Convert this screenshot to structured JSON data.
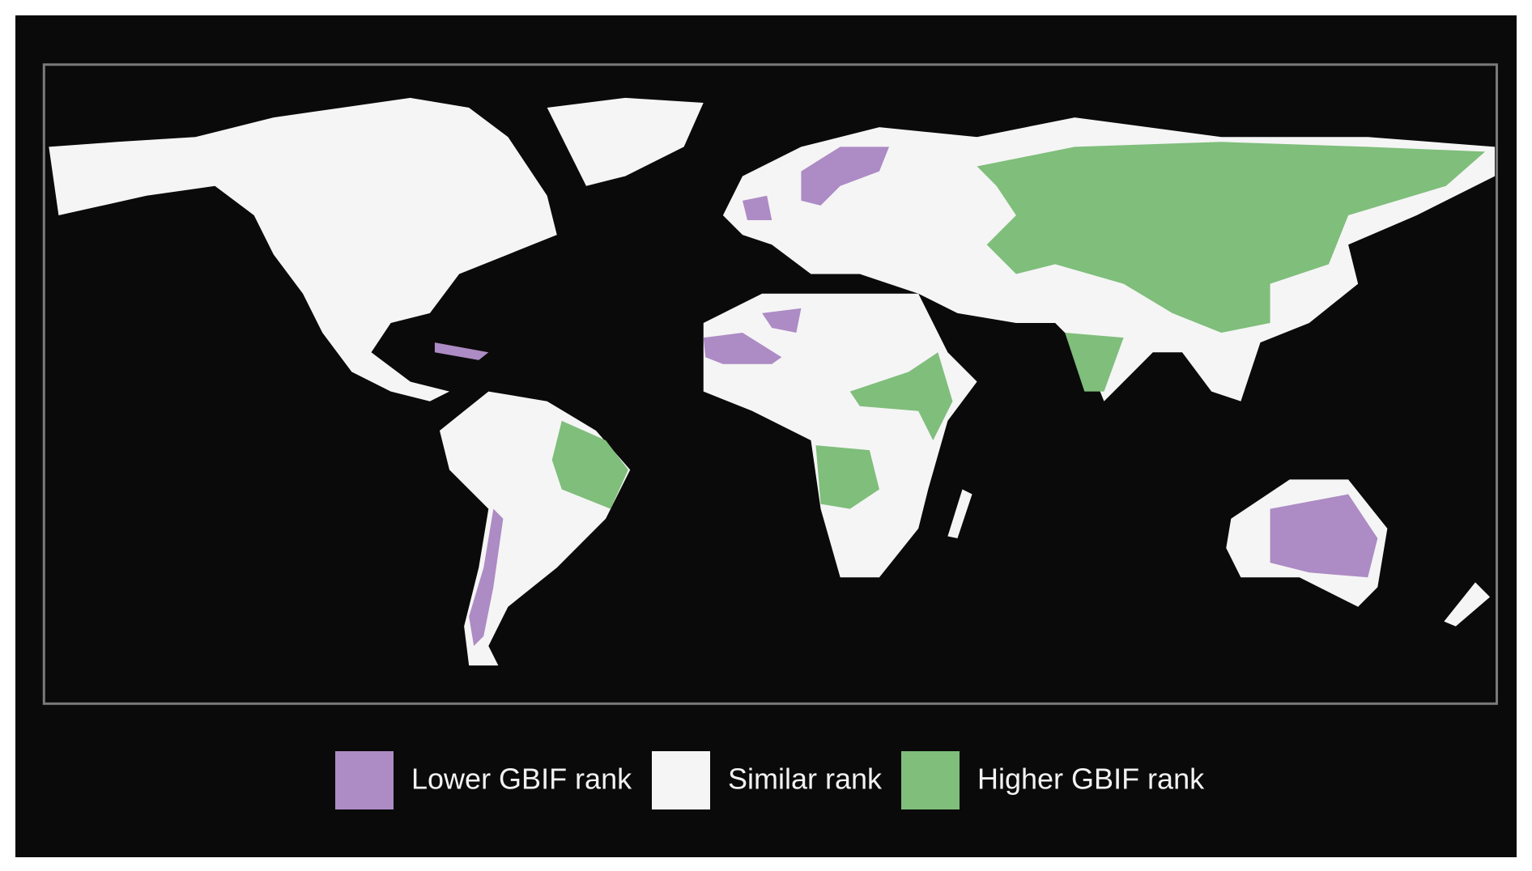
{
  "legend": {
    "items": [
      {
        "label": "Lower GBIF rank",
        "color": "#ad8bc4"
      },
      {
        "label": "Similar rank",
        "color": "#f5f5f5"
      },
      {
        "label": "Higher GBIF rank",
        "color": "#7fbe7b"
      }
    ]
  }
}
